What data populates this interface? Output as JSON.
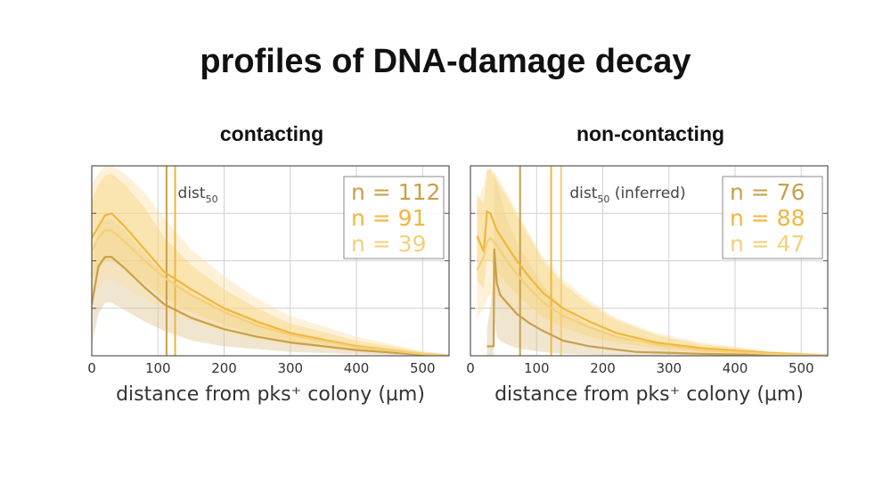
{
  "title": "profiles of DNA-damage decay",
  "colors": {
    "series_dark": "#c9a04a",
    "series_mid": "#f0b73c",
    "series_light": "#f5cf7a",
    "band_dark": "#d9c08a",
    "band_mid": "#f6c85a",
    "band_light": "#f9dfa0",
    "grid": "#d0d0d0",
    "frame": "#555555"
  },
  "chart_data": [
    {
      "type": "line",
      "title": "contacting",
      "xlabel": "distance from pks⁺ colony (µm)",
      "ylabel": "",
      "xlim": [
        0,
        540
      ],
      "ylim": [
        0,
        1
      ],
      "xticks": [
        0,
        100,
        200,
        300,
        400,
        500
      ],
      "grid": true,
      "annotation": {
        "text": "dist",
        "sub": "50",
        "suffix": "",
        "x": 130,
        "y": 0.83
      },
      "vlines": [
        {
          "x": 113,
          "series": "n = 112"
        },
        {
          "x": 126,
          "series": "n = 91"
        }
      ],
      "legend": {
        "placement": "top-right",
        "entries": [
          "n = 112",
          "n = 91",
          "n = 39"
        ]
      },
      "series": [
        {
          "name": "n = 112",
          "color_key": "series_dark",
          "x": [
            0,
            10,
            20,
            30,
            50,
            80,
            110,
            150,
            200,
            250,
            300,
            400,
            500,
            540
          ],
          "y": [
            0.27,
            0.47,
            0.52,
            0.52,
            0.46,
            0.36,
            0.27,
            0.2,
            0.14,
            0.1,
            0.07,
            0.03,
            0.005,
            0.0
          ],
          "lower": [
            0.05,
            0.22,
            0.28,
            0.28,
            0.24,
            0.18,
            0.13,
            0.08,
            0.05,
            0.035,
            0.02,
            0.008,
            0.0,
            0.0
          ],
          "upper": [
            0.48,
            0.66,
            0.72,
            0.72,
            0.66,
            0.54,
            0.43,
            0.33,
            0.24,
            0.17,
            0.12,
            0.06,
            0.015,
            0.005
          ]
        },
        {
          "name": "n = 91",
          "color_key": "series_mid",
          "x": [
            0,
            10,
            20,
            30,
            50,
            80,
            110,
            150,
            200,
            250,
            300,
            400,
            500,
            540
          ],
          "y": [
            0.62,
            0.68,
            0.74,
            0.75,
            0.68,
            0.56,
            0.44,
            0.35,
            0.25,
            0.18,
            0.12,
            0.05,
            0.01,
            0.0
          ],
          "lower": [
            0.4,
            0.45,
            0.5,
            0.5,
            0.46,
            0.38,
            0.3,
            0.23,
            0.16,
            0.11,
            0.075,
            0.03,
            0.004,
            0.0
          ],
          "upper": [
            0.82,
            0.9,
            0.95,
            0.96,
            0.9,
            0.78,
            0.62,
            0.48,
            0.35,
            0.25,
            0.17,
            0.08,
            0.02,
            0.005
          ]
        },
        {
          "name": "n = 39",
          "color_key": "series_light",
          "x": [
            0,
            10,
            20,
            30,
            50,
            80,
            110,
            150,
            200,
            250,
            300,
            400,
            500,
            540
          ],
          "y": [
            0.55,
            0.62,
            0.66,
            0.66,
            0.6,
            0.5,
            0.41,
            0.32,
            0.23,
            0.16,
            0.11,
            0.045,
            0.01,
            0.0
          ],
          "lower": [
            0.3,
            0.36,
            0.4,
            0.4,
            0.36,
            0.3,
            0.24,
            0.18,
            0.12,
            0.08,
            0.055,
            0.02,
            0.003,
            0.0
          ],
          "upper": [
            0.9,
            0.96,
            1.0,
            1.0,
            0.96,
            0.86,
            0.72,
            0.56,
            0.42,
            0.3,
            0.21,
            0.1,
            0.025,
            0.008
          ]
        }
      ]
    },
    {
      "type": "line",
      "title": "non-contacting",
      "xlabel": "distance from pks⁺ colony (µm)",
      "ylabel": "",
      "xlim": [
        0,
        540
      ],
      "ylim": [
        0,
        1
      ],
      "xticks": [
        0,
        100,
        200,
        300,
        400,
        500
      ],
      "grid": true,
      "annotation": {
        "text": "dist",
        "sub": "50",
        "suffix": " (inferred)",
        "x": 150,
        "y": 0.83
      },
      "vlines": [
        {
          "x": 75,
          "series": "n = 76"
        },
        {
          "x": 122,
          "series": "n = 88"
        },
        {
          "x": 137,
          "series": "n = 47"
        }
      ],
      "legend": {
        "placement": "top-right",
        "entries": [
          "n = 76",
          "n = 88",
          "n = 47"
        ]
      },
      "series": [
        {
          "name": "n = 76",
          "color_key": "series_dark",
          "x": [
            25,
            30,
            35,
            36,
            40,
            45,
            55,
            70,
            90,
            110,
            140,
            180,
            250,
            350,
            450,
            540
          ],
          "y": [
            0.05,
            0.05,
            0.05,
            0.56,
            0.38,
            0.32,
            0.28,
            0.22,
            0.17,
            0.13,
            0.08,
            0.05,
            0.02,
            0.01,
            0.004,
            0.0
          ],
          "lower": [
            0.0,
            0.0,
            0.0,
            0.2,
            0.1,
            0.08,
            0.06,
            0.04,
            0.03,
            0.02,
            0.01,
            0.005,
            0.0,
            0.0,
            0.0,
            0.0
          ],
          "upper": [
            0.15,
            0.25,
            0.4,
            0.98,
            0.9,
            0.85,
            0.72,
            0.6,
            0.48,
            0.37,
            0.25,
            0.16,
            0.07,
            0.03,
            0.01,
            0.005
          ]
        },
        {
          "name": "n = 88",
          "color_key": "series_mid",
          "x": [
            10,
            20,
            25,
            30,
            40,
            55,
            70,
            90,
            110,
            140,
            180,
            220,
            280,
            350,
            450,
            540
          ],
          "y": [
            0.63,
            0.55,
            0.76,
            0.75,
            0.66,
            0.58,
            0.5,
            0.41,
            0.33,
            0.25,
            0.18,
            0.12,
            0.07,
            0.04,
            0.015,
            0.0
          ],
          "lower": [
            0.4,
            0.35,
            0.5,
            0.5,
            0.44,
            0.38,
            0.32,
            0.26,
            0.2,
            0.15,
            0.1,
            0.07,
            0.04,
            0.02,
            0.005,
            0.0
          ],
          "upper": [
            0.85,
            0.8,
            0.98,
            0.98,
            0.92,
            0.84,
            0.74,
            0.62,
            0.5,
            0.38,
            0.27,
            0.19,
            0.11,
            0.06,
            0.025,
            0.008
          ]
        },
        {
          "name": "n = 47",
          "color_key": "series_light",
          "x": [
            10,
            20,
            25,
            30,
            40,
            55,
            70,
            90,
            110,
            140,
            180,
            220,
            280,
            350,
            450,
            540
          ],
          "y": [
            0.45,
            0.52,
            0.6,
            0.62,
            0.58,
            0.5,
            0.43,
            0.35,
            0.28,
            0.21,
            0.15,
            0.1,
            0.06,
            0.03,
            0.01,
            0.0
          ],
          "lower": [
            0.2,
            0.25,
            0.3,
            0.32,
            0.3,
            0.26,
            0.22,
            0.18,
            0.14,
            0.1,
            0.07,
            0.045,
            0.025,
            0.012,
            0.004,
            0.0
          ],
          "upper": [
            0.8,
            0.9,
            0.98,
            0.99,
            0.95,
            0.86,
            0.76,
            0.64,
            0.52,
            0.4,
            0.29,
            0.2,
            0.12,
            0.07,
            0.025,
            0.008
          ]
        }
      ]
    }
  ]
}
